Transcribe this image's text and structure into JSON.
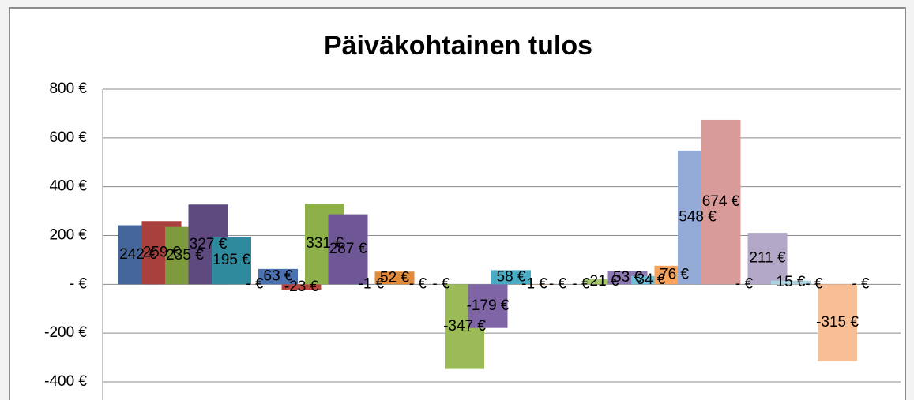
{
  "chart_data": {
    "type": "bar",
    "title": "Päiväkohtainen tulos",
    "values": [
      242,
      259,
      235,
      327,
      195,
      0,
      63,
      -23,
      331,
      287,
      -1,
      52,
      0,
      0,
      -347,
      -179,
      58,
      -1,
      0,
      0,
      21,
      53,
      34,
      76,
      548,
      674,
      0,
      211,
      15,
      0,
      -315,
      0
    ],
    "value_labels": [
      "242 €",
      "259 €",
      "235 €",
      "327 €",
      "195 €",
      "-  €",
      "63 €",
      "-23 €",
      "331 €",
      "287 €",
      "-1 €",
      "52 €",
      "-  €",
      "-  €",
      "-347 €",
      "-179 €",
      "58 €",
      "-1 €",
      "-  €",
      "-  €",
      "21 €",
      "53 €",
      "34 €",
      "76 €",
      "548 €",
      "674 €",
      "-  €",
      "211 €",
      "15 €",
      "-  €",
      "-315 €",
      "-  €"
    ],
    "colors": [
      "#45669a",
      "#a8403e",
      "#7d9a3f",
      "#5f4a80",
      "#2f8a9e",
      "#e0893a",
      "#4a72b0",
      "#b8463f",
      "#8db04a",
      "#6e5794",
      "#3a9cb6",
      "#e08a3a",
      "#4f81bd",
      "#c0504d",
      "#9bbb59",
      "#7f65a5",
      "#4bacc6",
      "#f79646",
      "#7a9fd0",
      "#d27472",
      "#a5c86a",
      "#8c78b0",
      "#6bc0d6",
      "#f7a35c",
      "#94aad6",
      "#d99a9a",
      "#bcd39a",
      "#b3a8c8",
      "#a8d4e2",
      "#f9c49a",
      "#f8be96",
      "#c9d6ea"
    ],
    "ylim": [
      -400,
      800
    ],
    "yticks": [
      {
        "value": -400,
        "label": "-400 €"
      },
      {
        "value": -200,
        "label": "-200 €"
      },
      {
        "value": 0,
        "label": "-  €"
      },
      {
        "value": 200,
        "label": "200 €"
      },
      {
        "value": 400,
        "label": "400 €"
      },
      {
        "value": 600,
        "label": "600 €"
      },
      {
        "value": 800,
        "label": "800 €"
      }
    ],
    "grid": true
  }
}
